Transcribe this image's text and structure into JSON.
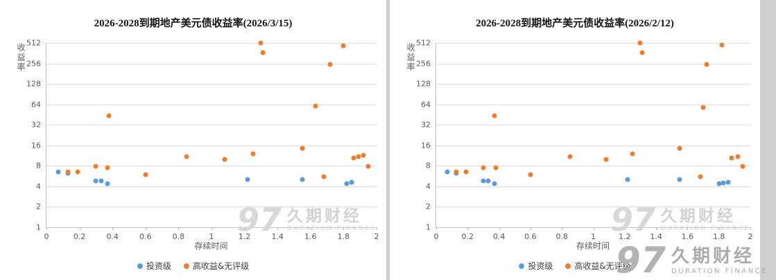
{
  "page": {
    "background": "#cfcfcf",
    "watermark": {
      "logo": "97",
      "name": "久期财经",
      "sub": "DURATION FINANCE"
    }
  },
  "chart_data": [
    {
      "type": "scatter",
      "title": "2026-2028到期地产美元债收益率(2026/3/15)",
      "xlabel": "存续时间",
      "ylabel": "收益率",
      "xlim": [
        0,
        2
      ],
      "ylim": [
        1,
        512
      ],
      "y_scale": "log2",
      "grid": "horizontal",
      "legend_position": "bottom",
      "x_ticks": [
        0,
        0.2,
        0.4,
        0.6,
        0.8,
        1,
        1.2,
        1.4,
        1.6,
        1.8,
        2
      ],
      "y_ticks": [
        512,
        256,
        128,
        64,
        32,
        16,
        8,
        4,
        2,
        1
      ],
      "series": [
        {
          "name": "投资级",
          "color": "#5B9BD5",
          "points": [
            [
              0.07,
              6.5
            ],
            [
              0.13,
              6.2
            ],
            [
              0.3,
              4.8
            ],
            [
              0.33,
              4.8
            ],
            [
              0.37,
              4.4
            ],
            [
              1.22,
              5.0
            ],
            [
              1.55,
              5.0
            ],
            [
              1.82,
              4.4
            ],
            [
              1.85,
              4.6
            ]
          ]
        },
        {
          "name": "高收益&无评级",
          "color": "#ED7D31",
          "points": [
            [
              0.13,
              6.6
            ],
            [
              0.19,
              6.5
            ],
            [
              0.3,
              7.8
            ],
            [
              0.37,
              7.6
            ],
            [
              0.38,
              44
            ],
            [
              0.6,
              6.0
            ],
            [
              0.85,
              11
            ],
            [
              1.08,
              10
            ],
            [
              1.25,
              12
            ],
            [
              1.3,
              512
            ],
            [
              1.31,
              370
            ],
            [
              1.55,
              14.5
            ],
            [
              1.63,
              60
            ],
            [
              1.68,
              5.5
            ],
            [
              1.72,
              250
            ],
            [
              1.8,
              470
            ],
            [
              1.86,
              10.5
            ],
            [
              1.89,
              11
            ],
            [
              1.92,
              11.5
            ],
            [
              1.95,
              7.8
            ]
          ]
        }
      ]
    },
    {
      "type": "scatter",
      "title": "2026-2028到期地产美元债收益率(2026/2/12)",
      "xlabel": "存续时间",
      "ylabel": "收益率",
      "xlim": [
        0,
        2
      ],
      "ylim": [
        1,
        512
      ],
      "y_scale": "log2",
      "grid": "horizontal",
      "legend_position": "bottom",
      "x_ticks": [
        0,
        0.2,
        0.4,
        0.6,
        0.8,
        1,
        1.2,
        1.4,
        1.6,
        1.8,
        2
      ],
      "y_ticks": [
        512,
        256,
        128,
        64,
        32,
        16,
        8,
        4,
        2,
        1
      ],
      "series": [
        {
          "name": "投资级",
          "color": "#5B9BD5",
          "points": [
            [
              0.07,
              6.5
            ],
            [
              0.13,
              6.2
            ],
            [
              0.3,
              4.8
            ],
            [
              0.33,
              4.8
            ],
            [
              0.37,
              4.4
            ],
            [
              1.22,
              5.0
            ],
            [
              1.55,
              5.0
            ],
            [
              1.8,
              4.4
            ],
            [
              1.83,
              4.5
            ],
            [
              1.86,
              4.6
            ]
          ]
        },
        {
          "name": "高收益&无评级",
          "color": "#ED7D31",
          "points": [
            [
              0.13,
              6.6
            ],
            [
              0.19,
              6.5
            ],
            [
              0.3,
              7.5
            ],
            [
              0.37,
              44
            ],
            [
              0.38,
              7.5
            ],
            [
              0.6,
              6.0
            ],
            [
              0.85,
              11
            ],
            [
              1.08,
              10
            ],
            [
              1.25,
              12
            ],
            [
              1.3,
              512
            ],
            [
              1.31,
              370
            ],
            [
              1.55,
              14.5
            ],
            [
              1.68,
              5.5
            ],
            [
              1.7,
              58
            ],
            [
              1.72,
              250
            ],
            [
              1.82,
              480
            ],
            [
              1.88,
              10.5
            ],
            [
              1.92,
              11
            ],
            [
              1.95,
              7.8
            ]
          ]
        }
      ]
    }
  ]
}
